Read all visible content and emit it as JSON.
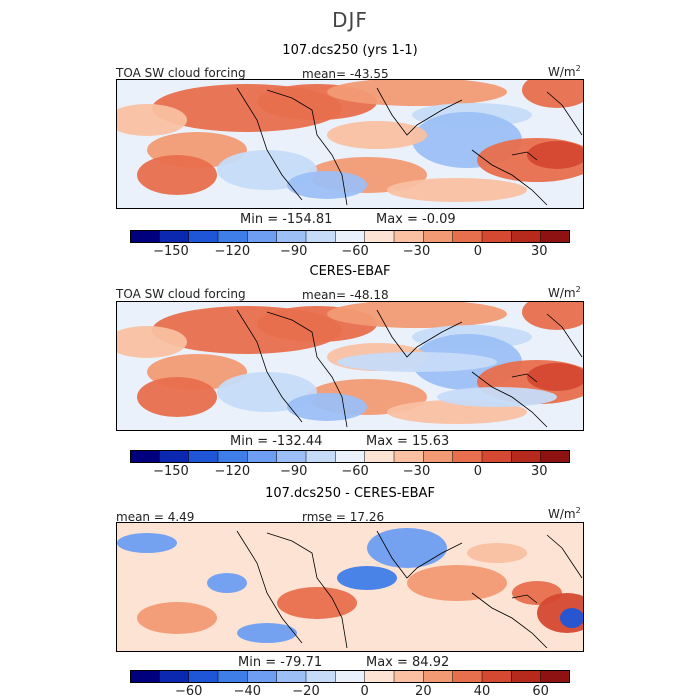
{
  "title": "DJF",
  "colors": [
    "#00007f",
    "#0b28b0",
    "#1f56d8",
    "#3f7de8",
    "#6d9ef2",
    "#9cbff5",
    "#c6dbf8",
    "#eaf1fb",
    "#fde3d3",
    "#f9c0a1",
    "#f29a74",
    "#e86f4d",
    "#d54831",
    "#b62a1e",
    "#8e1212"
  ],
  "panels": [
    {
      "title": "107.dcs250 (yrs 1-1)",
      "left_label": "TOA SW cloud forcing",
      "center_label": "mean= -43.55",
      "units": "W/m",
      "units_exp": "2",
      "min_label": "Min = -154.81",
      "max_label": "Max =   -0.09"
    },
    {
      "title": "CERES-EBAF",
      "left_label": "TOA SW cloud forcing",
      "center_label": "mean= -48.18",
      "units": "W/m",
      "units_exp": "2",
      "min_label": "Min = -132.44",
      "max_label": "Max =  15.63"
    },
    {
      "title": "107.dcs250 - CERES-EBAF",
      "left_label": "mean =   4.49",
      "center_label": "rmse =  17.26",
      "units": "W/m",
      "units_exp": "2",
      "min_label": "Min = -79.71",
      "max_label": "Max =  84.92"
    }
  ],
  "chart_data": [
    {
      "type": "heatmap",
      "title": "107.dcs250 (yrs 1-1)",
      "field": "TOA SW cloud forcing",
      "units": "W/m2",
      "mean": -43.55,
      "min": -154.81,
      "max": -0.09,
      "colorbar_levels": [
        -170,
        -150,
        -135,
        -120,
        -105,
        -90,
        -75,
        -60,
        -45,
        -30,
        -15,
        0,
        15,
        30,
        45
      ],
      "colorbar_ticks": [
        -150,
        -120,
        -90,
        -60,
        -30,
        0,
        30
      ]
    },
    {
      "type": "heatmap",
      "title": "CERES-EBAF",
      "field": "TOA SW cloud forcing",
      "units": "W/m2",
      "mean": -48.18,
      "min": -132.44,
      "max": 15.63,
      "colorbar_levels": [
        -170,
        -150,
        -135,
        -120,
        -105,
        -90,
        -75,
        -60,
        -45,
        -30,
        -15,
        0,
        15,
        30,
        45
      ],
      "colorbar_ticks": [
        -150,
        -120,
        -90,
        -60,
        -30,
        0,
        30
      ]
    },
    {
      "type": "heatmap",
      "title": "107.dcs250 - CERES-EBAF",
      "units": "W/m2",
      "mean": 4.49,
      "rmse": 17.26,
      "min": -79.71,
      "max": 84.92,
      "colorbar_levels": [
        -80,
        -70,
        -60,
        -50,
        -40,
        -30,
        -20,
        -10,
        0,
        10,
        20,
        30,
        40,
        50,
        60,
        70
      ],
      "colorbar_ticks": [
        -60,
        -40,
        -20,
        0,
        20,
        40,
        60
      ]
    }
  ]
}
